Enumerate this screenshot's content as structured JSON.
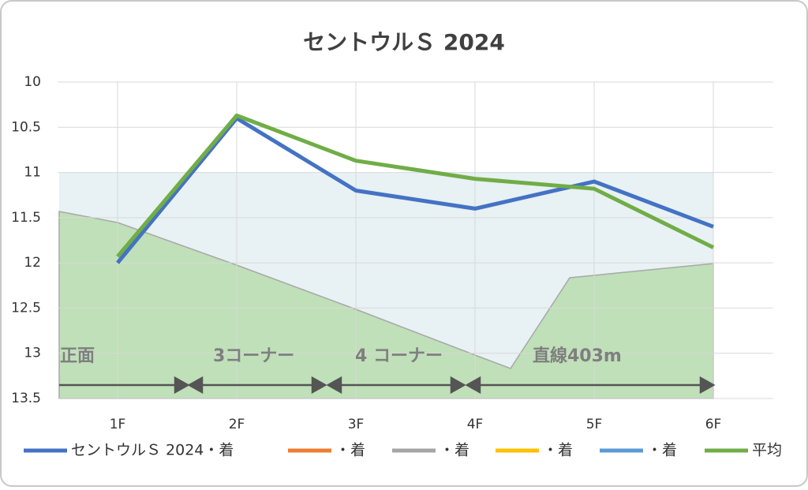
{
  "chart_data": {
    "type": "line",
    "title": "セントウルＳ 2024",
    "categories": [
      "1F",
      "2F",
      "3F",
      "4F",
      "5F",
      "6F"
    ],
    "series": [
      {
        "name": "セントウルＳ 2024・着",
        "color": "#4472c4",
        "values": [
          12.0,
          10.4,
          11.2,
          11.4,
          11.1,
          11.6
        ]
      },
      {
        "name": "・着",
        "color": "#ed7d31",
        "values": [
          null,
          null,
          null,
          null,
          null,
          null
        ]
      },
      {
        "name": "・着",
        "color": "#a5a5a5",
        "values": [
          null,
          null,
          null,
          null,
          null,
          null
        ]
      },
      {
        "name": "・着",
        "color": "#ffc000",
        "values": [
          null,
          null,
          null,
          null,
          null,
          null
        ]
      },
      {
        "name": "・着",
        "color": "#5b9bd5",
        "values": [
          null,
          null,
          null,
          null,
          null,
          null
        ]
      },
      {
        "name": "平均",
        "color": "#70ad47",
        "values": [
          11.93,
          10.37,
          10.87,
          11.07,
          11.18,
          11.83
        ]
      }
    ],
    "ylim": [
      10,
      13.5
    ],
    "y_inverted": true,
    "yticks": [
      10,
      10.5,
      11,
      11.5,
      12,
      12.5,
      13,
      13.5
    ],
    "grid": true,
    "legend": "bottom",
    "annotations": [
      "正面",
      "3コーナー",
      "4 コーナー",
      "直線403m"
    ]
  }
}
